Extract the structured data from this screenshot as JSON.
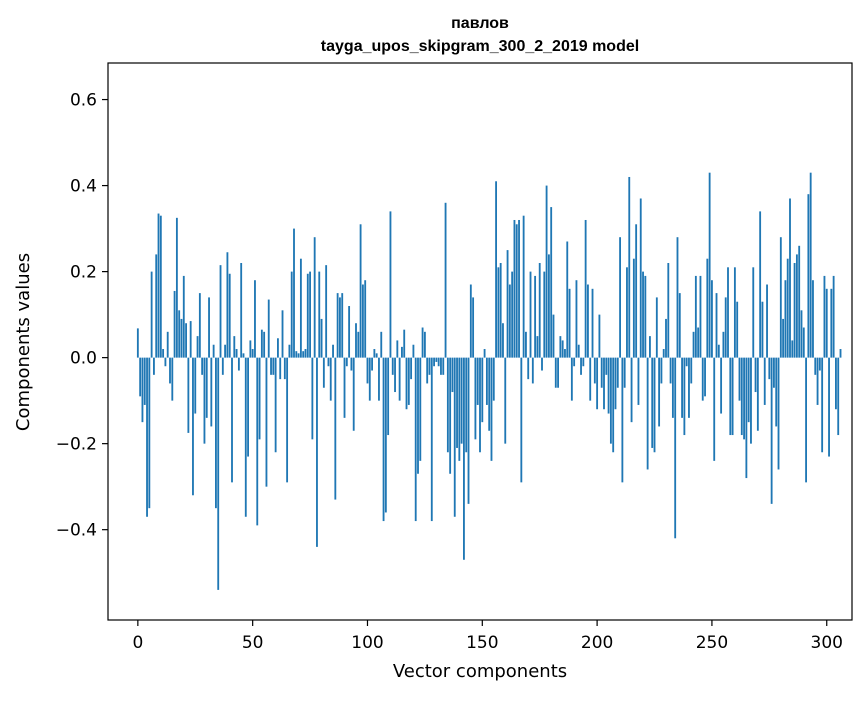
{
  "chart_data": {
    "type": "bar",
    "title_line1": "павлов",
    "title_line2": "tayga_upos_skipgram_300_2_2019 model",
    "xlabel": "Vector components",
    "ylabel": "Components values",
    "xlim": [
      -13,
      311
    ],
    "ylim": [
      -0.61,
      0.685
    ],
    "xticks": [
      0,
      50,
      100,
      150,
      200,
      250,
      300
    ],
    "xtick_labels": [
      "0",
      "50",
      "100",
      "150",
      "200",
      "250",
      "300"
    ],
    "yticks": [
      -0.4,
      -0.2,
      0.0,
      0.2,
      0.4,
      0.6
    ],
    "ytick_labels": [
      "−0.4",
      "−0.2",
      "0.0",
      "0.2",
      "0.4",
      "0.6"
    ],
    "bar_color": "#1f77b4",
    "grid": false,
    "values": [
      0.068,
      -0.09,
      -0.15,
      -0.11,
      -0.37,
      -0.35,
      0.2,
      -0.04,
      0.24,
      0.335,
      0.33,
      0.02,
      -0.02,
      0.06,
      -0.06,
      -0.1,
      0.155,
      0.325,
      0.11,
      0.09,
      0.19,
      0.08,
      -0.175,
      0.085,
      -0.32,
      -0.13,
      0.05,
      0.15,
      -0.04,
      -0.2,
      -0.14,
      0.14,
      -0.16,
      0.03,
      -0.35,
      -0.54,
      0.215,
      -0.04,
      0.03,
      0.245,
      0.195,
      -0.29,
      0.05,
      0.02,
      -0.03,
      0.22,
      0.01,
      -0.37,
      -0.23,
      0.04,
      0.02,
      0.18,
      -0.39,
      -0.19,
      0.065,
      0.06,
      -0.3,
      0.135,
      -0.04,
      -0.04,
      -0.22,
      0.045,
      -0.05,
      0.11,
      -0.05,
      -0.29,
      0.03,
      0.2,
      0.3,
      0.015,
      0.01,
      0.23,
      0.015,
      0.02,
      0.195,
      0.2,
      -0.19,
      0.28,
      -0.44,
      0.2,
      0.09,
      -0.07,
      0.215,
      -0.02,
      -0.1,
      0.03,
      -0.33,
      0.15,
      0.14,
      0.15,
      -0.14,
      -0.02,
      0.12,
      -0.03,
      -0.17,
      0.08,
      0.06,
      0.31,
      0.17,
      0.18,
      -0.06,
      -0.1,
      -0.03,
      0.02,
      0.01,
      -0.1,
      0.06,
      -0.38,
      -0.36,
      -0.18,
      0.34,
      -0.04,
      -0.08,
      0.04,
      -0.1,
      0.025,
      0.065,
      -0.12,
      -0.11,
      -0.05,
      0.03,
      -0.38,
      -0.27,
      -0.24,
      0.07,
      0.06,
      -0.06,
      -0.04,
      -0.38,
      -0.02,
      -0.01,
      -0.02,
      -0.04,
      -0.04,
      0.36,
      -0.22,
      -0.27,
      -0.08,
      -0.37,
      -0.21,
      -0.24,
      -0.2,
      -0.47,
      -0.22,
      -0.34,
      0.17,
      0.14,
      -0.19,
      -0.11,
      -0.22,
      -0.15,
      0.02,
      -0.11,
      -0.17,
      -0.24,
      -0.1,
      0.41,
      0.21,
      0.22,
      0.08,
      -0.2,
      0.25,
      0.17,
      0.2,
      0.32,
      0.31,
      0.32,
      -0.29,
      0.33,
      0.06,
      -0.05,
      0.2,
      -0.06,
      0.19,
      0.05,
      0.22,
      -0.03,
      0.2,
      0.4,
      0.24,
      0.35,
      0.1,
      -0.07,
      -0.07,
      0.05,
      0.04,
      0.02,
      0.27,
      0.16,
      -0.1,
      -0.02,
      0.18,
      0.03,
      -0.04,
      -0.02,
      0.32,
      0.17,
      -0.1,
      0.16,
      -0.06,
      -0.12,
      0.1,
      -0.07,
      -0.12,
      -0.04,
      -0.13,
      -0.2,
      -0.22,
      -0.12,
      -0.07,
      0.28,
      -0.29,
      -0.07,
      0.21,
      0.42,
      -0.15,
      0.23,
      0.31,
      -0.11,
      0.37,
      0.2,
      0.19,
      -0.26,
      0.05,
      -0.21,
      -0.22,
      0.14,
      -0.16,
      -0.06,
      0.02,
      0.09,
      0.22,
      -0.06,
      -0.14,
      -0.42,
      0.28,
      0.15,
      -0.14,
      -0.18,
      -0.02,
      -0.14,
      -0.06,
      0.06,
      0.19,
      0.07,
      0.19,
      -0.1,
      -0.09,
      0.23,
      0.43,
      0.18,
      -0.24,
      0.15,
      0.03,
      -0.13,
      0.06,
      0.14,
      0.21,
      -0.18,
      -0.18,
      0.21,
      0.13,
      -0.1,
      -0.18,
      -0.19,
      -0.28,
      -0.15,
      -0.2,
      0.21,
      -0.08,
      -0.17,
      0.34,
      0.13,
      -0.11,
      0.17,
      -0.05,
      -0.34,
      -0.07,
      -0.16,
      -0.26,
      0.28,
      0.09,
      0.18,
      0.23,
      0.37,
      0.04,
      0.22,
      0.24,
      0.26,
      0.11,
      0.07,
      -0.29,
      0.38,
      0.43,
      0.18,
      -0.04,
      -0.11,
      -0.03,
      -0.22,
      0.19,
      0.16,
      -0.23,
      0.16,
      0.19,
      -0.12,
      -0.18,
      0.02
    ]
  }
}
